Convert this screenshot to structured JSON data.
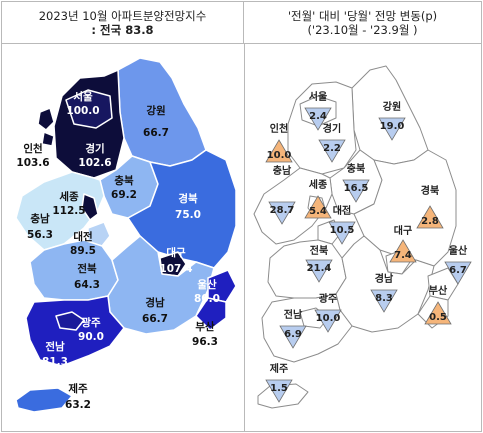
{
  "left_panel": {
    "title": "2023년 10월 아파트분양전망지수",
    "subtitle": ": 전국 83.8",
    "regions": [
      {
        "name": "서울",
        "value": "100.0"
      },
      {
        "name": "인천",
        "value": "103.6"
      },
      {
        "name": "경기",
        "value": "102.6"
      },
      {
        "name": "강원",
        "value": "66.7"
      },
      {
        "name": "세종",
        "value": "112.5"
      },
      {
        "name": "충북",
        "value": "69.2"
      },
      {
        "name": "충남",
        "value": "56.3"
      },
      {
        "name": "대전",
        "value": "89.5"
      },
      {
        "name": "경북",
        "value": "75.0"
      },
      {
        "name": "전북",
        "value": "64.3"
      },
      {
        "name": "대구",
        "value": "107.4"
      },
      {
        "name": "울산",
        "value": "80.0"
      },
      {
        "name": "경남",
        "value": "66.7"
      },
      {
        "name": "부산",
        "value": "96.3"
      },
      {
        "name": "광주",
        "value": "90.0"
      },
      {
        "name": "전남",
        "value": "81.3"
      },
      {
        "name": "제주",
        "value": "63.2"
      }
    ],
    "colors": {
      "very_dark": "#0d0d3a",
      "dark_blue": "#1f1fbf",
      "mid_blue": "#4f7fe8",
      "light_blue": "#8eb6f2",
      "pale_blue": "#c9e6f7"
    }
  },
  "right_panel": {
    "title": "'전월' 대비 '당월' 전망 변동(p)",
    "subtitle": "('23.10월 - '23.9월 )",
    "regions": [
      {
        "name": "서울",
        "value": "2.4",
        "direction": "down"
      },
      {
        "name": "강원",
        "value": "19.0",
        "direction": "down"
      },
      {
        "name": "인천",
        "value": "10.0",
        "direction": "up"
      },
      {
        "name": "경기",
        "value": "2.2",
        "direction": "down"
      },
      {
        "name": "충북",
        "value": "16.5",
        "direction": "down"
      },
      {
        "name": "충남",
        "value": "28.7",
        "direction": "down"
      },
      {
        "name": "세종",
        "value": "5.4",
        "direction": "up"
      },
      {
        "name": "대전",
        "value": "10.5",
        "direction": "down"
      },
      {
        "name": "경북",
        "value": "2.8",
        "direction": "up"
      },
      {
        "name": "전북",
        "value": "21.4",
        "direction": "down"
      },
      {
        "name": "대구",
        "value": "7.4",
        "direction": "up"
      },
      {
        "name": "울산",
        "value": "6.7",
        "direction": "down"
      },
      {
        "name": "경남",
        "value": "8.3",
        "direction": "down"
      },
      {
        "name": "광주",
        "value": "10.0",
        "direction": "down"
      },
      {
        "name": "부산",
        "value": "0.5",
        "direction": "up"
      },
      {
        "name": "전남",
        "value": "6.9",
        "direction": "down"
      },
      {
        "name": "제주",
        "value": "1.5",
        "direction": "down"
      }
    ],
    "colors": {
      "down": "#b8cdef",
      "up": "#f5b57a",
      "map_fill": "#ffffff",
      "map_stroke": "#8c8c8c"
    }
  }
}
